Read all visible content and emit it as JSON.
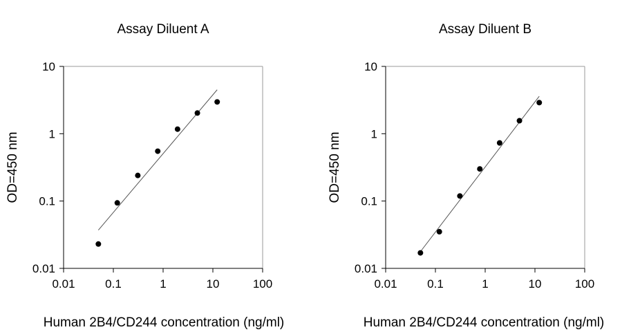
{
  "chart_data": [
    {
      "type": "scatter",
      "title": "Assay Diluent A",
      "xlabel": "Human 2B4/CD244 concentration (ng/ml)",
      "ylabel": "OD=450 nm",
      "xscale": "log",
      "yscale": "log",
      "xlim": [
        0.01,
        100
      ],
      "ylim": [
        0.01,
        10
      ],
      "xticks": [
        "0.01",
        "0.1",
        "1",
        "10",
        "100"
      ],
      "yticks": [
        "0.01",
        "0.1",
        "1",
        "10"
      ],
      "grid": false,
      "points": {
        "x": [
          0.05,
          0.12,
          0.31,
          0.78,
          1.95,
          4.88,
          12.2
        ],
        "y": [
          0.023,
          0.094,
          0.24,
          0.55,
          1.17,
          2.03,
          2.97
        ]
      },
      "fit_line": {
        "x": [
          0.05,
          12.2
        ],
        "y": [
          0.037,
          4.5
        ]
      }
    },
    {
      "type": "scatter",
      "title": "Assay Diluent B",
      "xlabel": "Human 2B4/CD244 concentration (ng/ml)",
      "ylabel": "OD=450 nm",
      "xscale": "log",
      "yscale": "log",
      "xlim": [
        0.01,
        100
      ],
      "ylim": [
        0.01,
        10
      ],
      "xticks": [
        "0.01",
        "0.1",
        "1",
        "10",
        "100"
      ],
      "yticks": [
        "0.01",
        "0.1",
        "1",
        "10"
      ],
      "grid": false,
      "points": {
        "x": [
          0.05,
          0.12,
          0.31,
          0.78,
          1.95,
          4.88,
          12.2
        ],
        "y": [
          0.017,
          0.035,
          0.119,
          0.3,
          0.73,
          1.56,
          2.9
        ]
      },
      "fit_line": {
        "x": [
          0.045,
          12.2
        ],
        "y": [
          0.016,
          3.6
        ]
      }
    }
  ]
}
